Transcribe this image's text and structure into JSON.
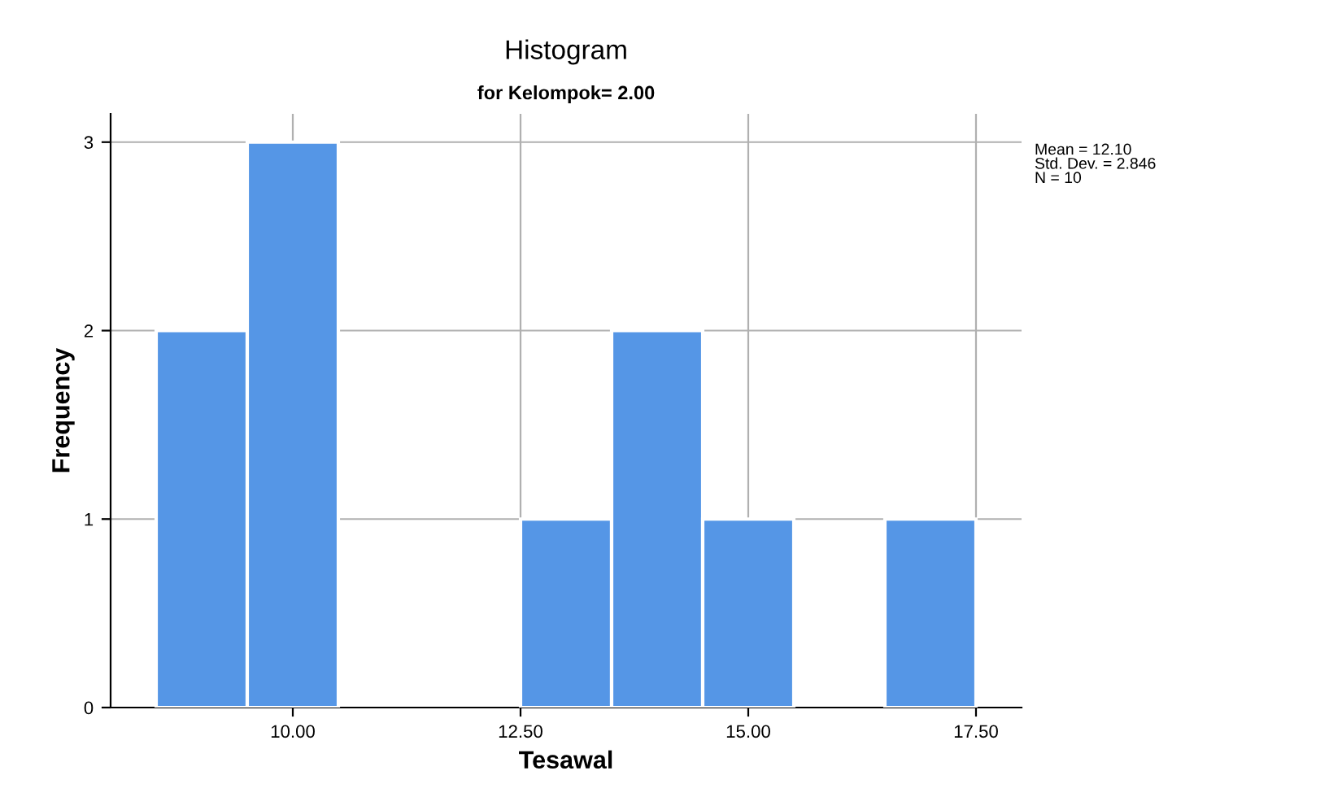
{
  "chart_data": {
    "type": "histogram",
    "title": "Histogram",
    "subtitle": "for Kelompok= 2.00",
    "xlabel": "Tesawal",
    "ylabel": "Frequency",
    "bins": [
      8.5,
      9.5,
      10.5,
      11.5,
      12.5,
      13.5,
      14.5,
      15.5,
      16.5,
      17.5
    ],
    "values": [
      2,
      3,
      0,
      0,
      1,
      2,
      1,
      0,
      1
    ],
    "color": "#5596e6",
    "xlim": [
      8.0,
      18.0
    ],
    "ylim": [
      0,
      3.15
    ],
    "xticks": [
      {
        "value": 10,
        "label": "10.00"
      },
      {
        "value": 12.5,
        "label": "12.50"
      },
      {
        "value": 15,
        "label": "15.00"
      },
      {
        "value": 17.5,
        "label": "17.50"
      }
    ],
    "yticks": [
      0,
      1,
      2,
      3
    ],
    "grid": true,
    "annotations": [
      "Mean = 12.10\nStd. Dev. = 2.846\nN = 10"
    ]
  }
}
